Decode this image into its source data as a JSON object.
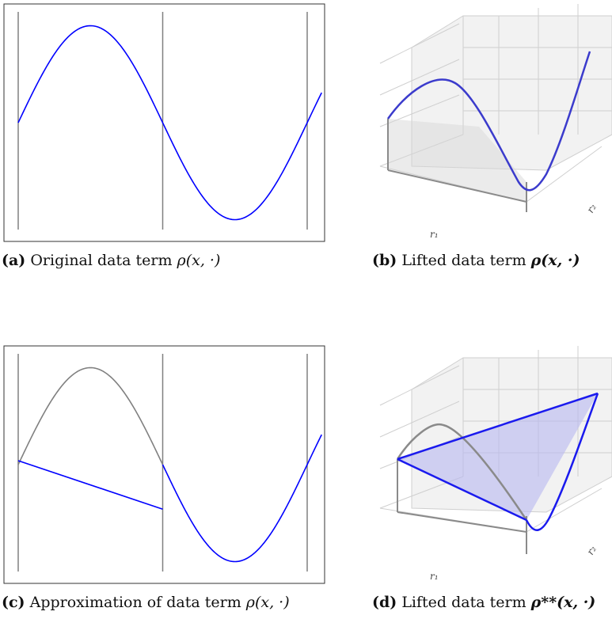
{
  "figure": {
    "panels": [
      {
        "id": "a",
        "tag": "(a)",
        "caption": "Original data term",
        "math": "ρ(x, ·)"
      },
      {
        "id": "b",
        "tag": "(b)",
        "caption": "Lifted data term",
        "math": "ρ(x, ·)"
      },
      {
        "id": "c",
        "tag": "(c)",
        "caption": "Approximation of data term",
        "math": "ρ(x, ·)"
      },
      {
        "id": "d",
        "tag": "(d)",
        "caption": "Lifted data term",
        "math": "ρ**(x, ·)"
      }
    ],
    "axis_labels_3d": {
      "r1": "r₁",
      "r2": "r₂"
    }
  },
  "chart_data": [
    {
      "type": "line",
      "panel": "a",
      "title": "",
      "series": [
        {
          "function": "sin",
          "x": [
            0,
            1,
            2
          ],
          "note": "x in units of pi",
          "color": "#0000ff"
        }
      ],
      "vertical_lines": [
        0,
        1,
        2
      ],
      "colors": {
        "curve": "#0000ff",
        "vline": "#808080"
      }
    },
    {
      "type": "line",
      "panel": "c",
      "title": "",
      "series": [
        {
          "function": "sin",
          "segment": [
            0,
            1
          ],
          "color": "#808080"
        },
        {
          "function": "linear",
          "points": [
            [
              0,
              0
            ],
            [
              1,
              -0.3
            ]
          ],
          "color": "#0000ff"
        },
        {
          "function": "sin",
          "segment": [
            1,
            2
          ],
          "color": "#0000ff"
        }
      ],
      "vertical_lines": [
        0,
        1,
        2
      ]
    }
  ]
}
